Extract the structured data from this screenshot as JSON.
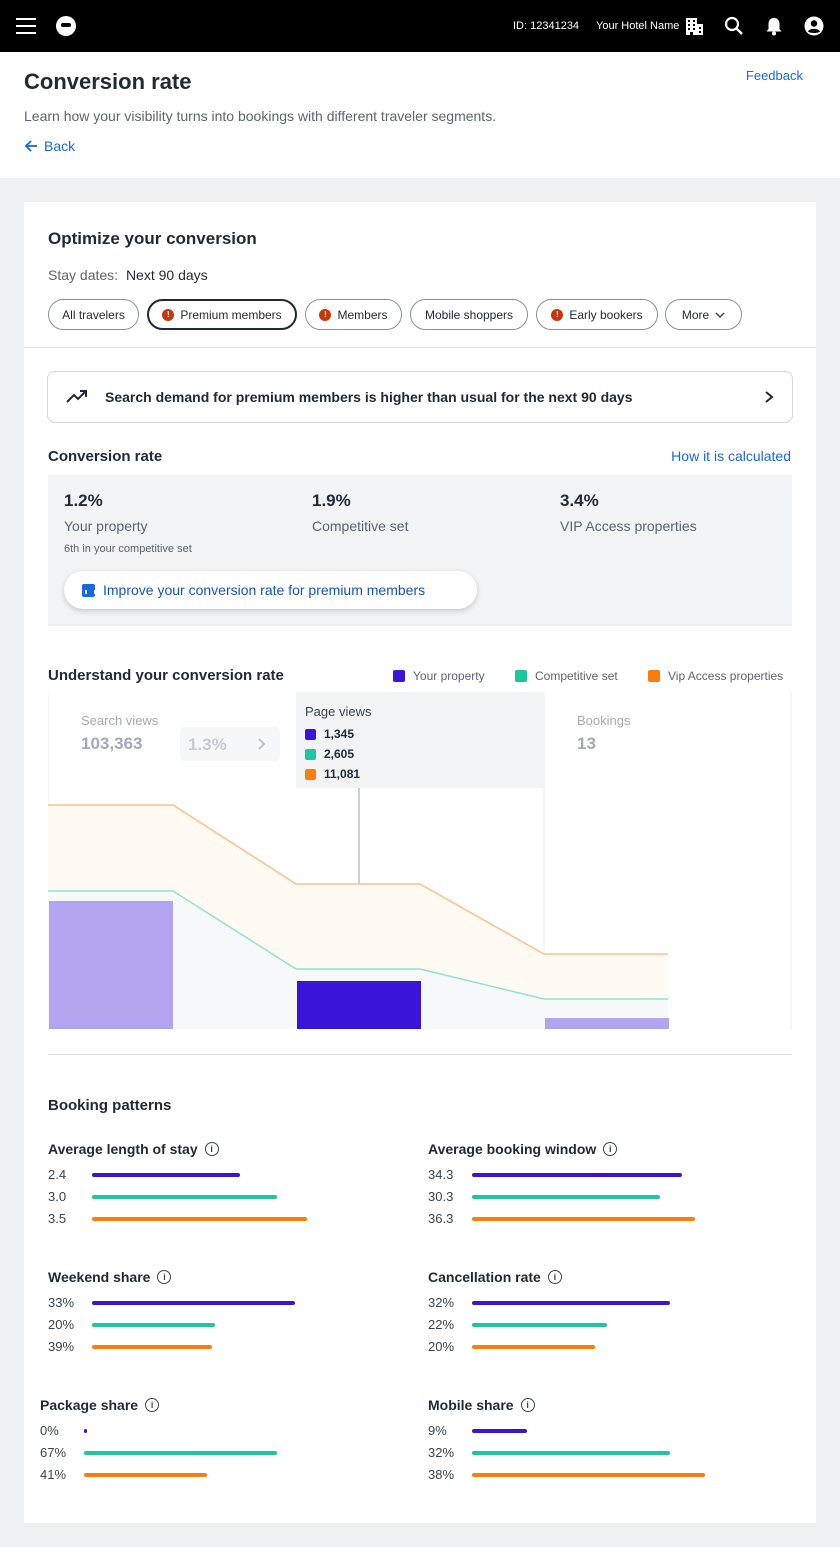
{
  "topbar": {
    "account_id": "ID: 12341234",
    "hotel_name": "Your Hotel Name"
  },
  "header": {
    "title": "Conversion rate",
    "subtitle": "Learn how your visibility turns into bookings with different traveler segments.",
    "back_label": "Back",
    "feedback_label": "Feedback"
  },
  "colors": {
    "your_property": "#3a14d9",
    "competitive_set": "#1ec5a1",
    "vip": "#fb7d0b",
    "link": "#1668e3",
    "warning": "#c8360c"
  },
  "optimize": {
    "title": "Optimize your conversion",
    "stay_dates_label": "Stay dates:",
    "stay_dates_value": "Next 90 days",
    "filters": [
      {
        "label": "All travelers",
        "selected": false,
        "warning": false
      },
      {
        "label": "Premium members",
        "selected": true,
        "warning": true
      },
      {
        "label": "Members",
        "selected": false,
        "warning": true
      },
      {
        "label": "Mobile shoppers",
        "selected": false,
        "warning": false
      },
      {
        "label": "Early bookers",
        "selected": false,
        "warning": true
      },
      {
        "label": "More",
        "selected": false,
        "warning": false
      }
    ]
  },
  "alert": {
    "text": "Search demand for premium members is higher than usual for the next 90 days"
  },
  "conversion": {
    "title": "Conversion rate",
    "how_link": "How it is calculated",
    "metrics": [
      {
        "value": "1.2%",
        "label": "Your property"
      },
      {
        "value": "1.9%",
        "label": "Competitive set"
      },
      {
        "value": "3.4%",
        "label": "VIP Access properties"
      }
    ],
    "rank_text": "6th in your competitive set",
    "improve_label": "Improve your conversion rate for premium members"
  },
  "understand": {
    "title": "Understand your conversion rate",
    "legend": [
      "Your property",
      "Competitive set",
      "Vip Access properties"
    ],
    "stages": [
      {
        "label": "Search views",
        "value": "103,363"
      },
      {
        "label": "Page views",
        "value": ""
      },
      {
        "label": "Bookings",
        "value": "13"
      }
    ],
    "ratio": "1.3%",
    "tooltip": {
      "title": "Page views",
      "values": [
        "1,345",
        "2,605",
        "11,081"
      ]
    }
  },
  "booking_patterns": {
    "title": "Booking patterns",
    "groups": [
      {
        "title": "Average length of stay",
        "labels": [
          "2.4",
          "3.0",
          "3.5"
        ],
        "fills": [
          0.59,
          0.74,
          0.86
        ]
      },
      {
        "title": "Average booking window",
        "labels": [
          "34.3",
          "30.3",
          "36.3"
        ],
        "fills": [
          0.84,
          0.75,
          0.89
        ]
      },
      {
        "title": "Weekend share",
        "labels": [
          "33%",
          "20%",
          "39%"
        ],
        "fills": [
          0.81,
          0.49,
          0.48
        ]
      },
      {
        "title": "Cancellation rate",
        "labels": [
          "32%",
          "22%",
          "20%"
        ],
        "fills": [
          0.79,
          0.54,
          0.49
        ]
      },
      {
        "title": "Package share",
        "labels": [
          "0%",
          "67%",
          "41%"
        ],
        "fills": [
          0.01,
          0.77,
          0.49
        ]
      },
      {
        "title": "Mobile share",
        "labels": [
          "9%",
          "32%",
          "38%"
        ],
        "fills": [
          0.22,
          0.79,
          0.93
        ]
      }
    ]
  }
}
